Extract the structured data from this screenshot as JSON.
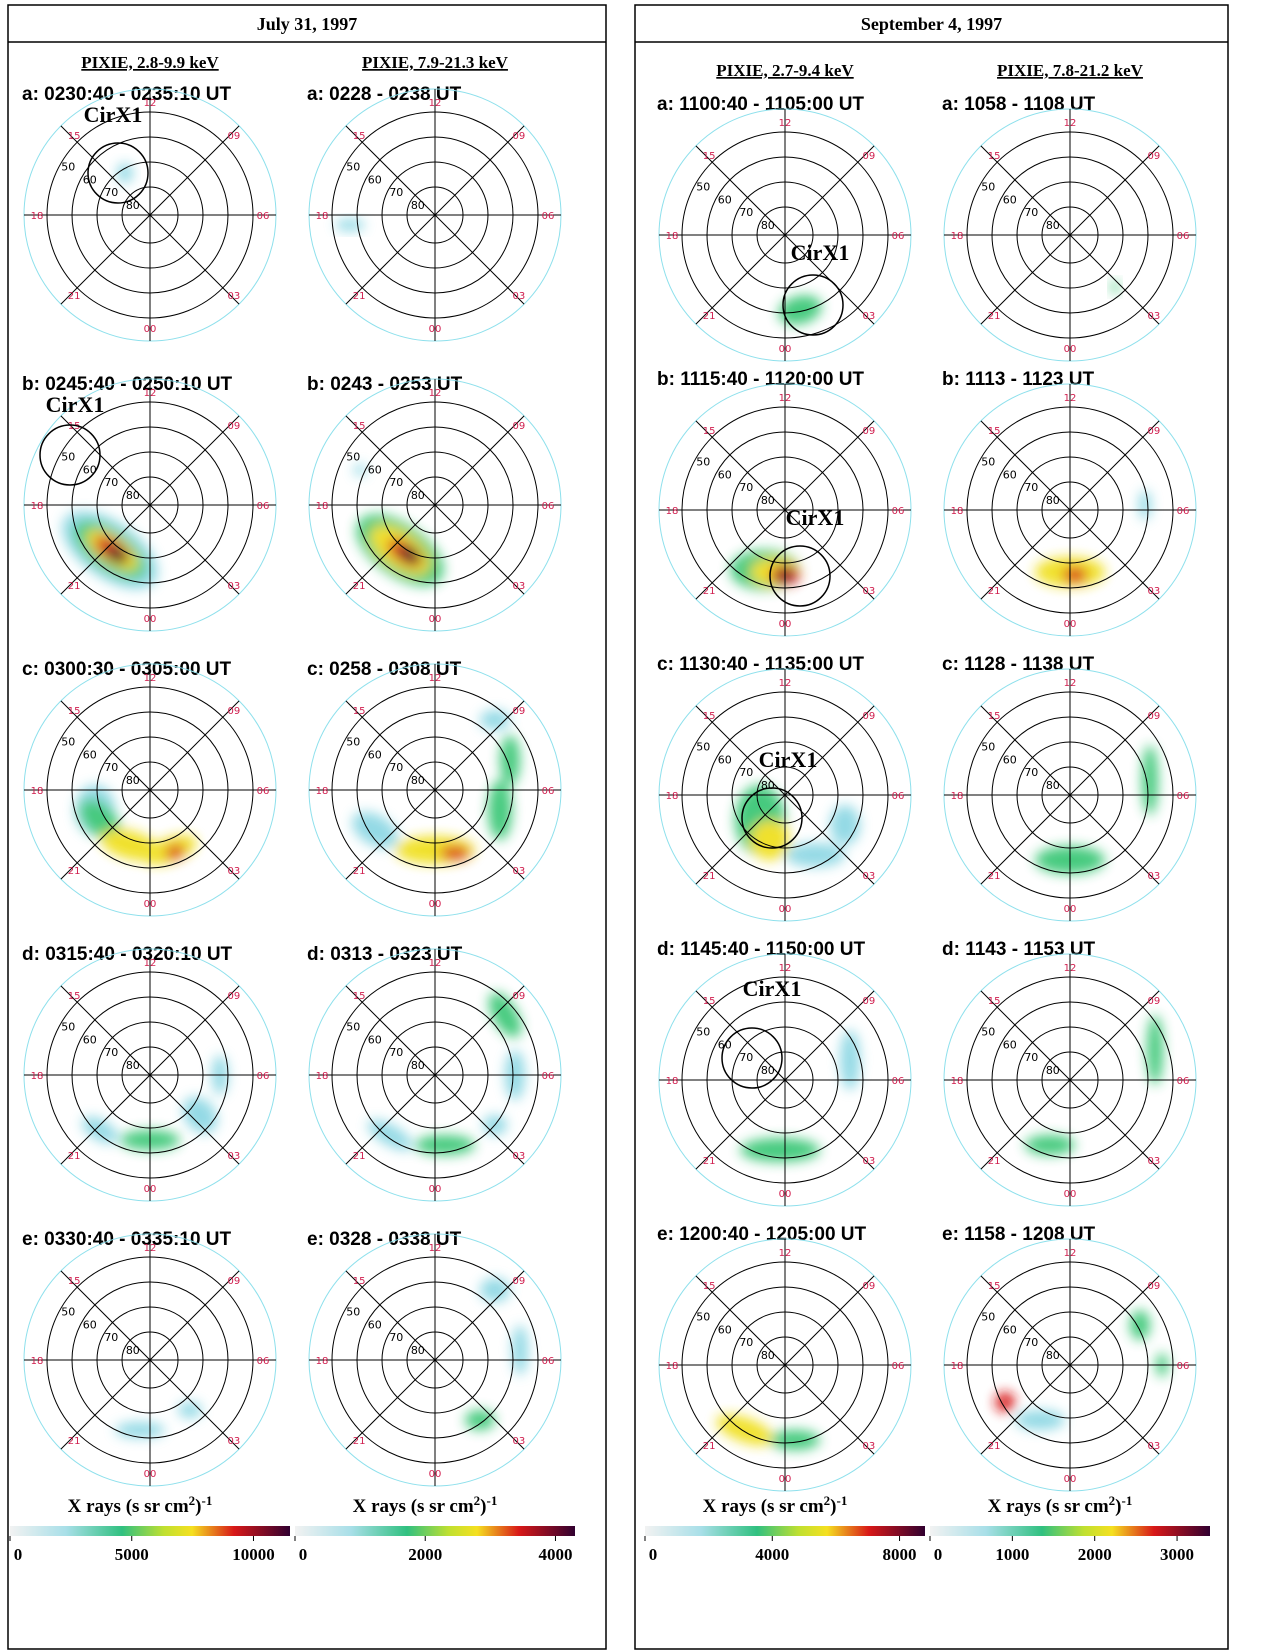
{
  "panels": [
    {
      "title": "July 31, 1997",
      "columns": [
        {
          "header": "PIXIE, 2.8-9.9 keV",
          "plots": [
            {
              "label": "a: 0230:40 - 0235:10 UT",
              "marker": "CirX1"
            },
            {
              "label": "b: 0245:40 - 0250:10 UT",
              "marker": "CirX1"
            },
            {
              "label": "c: 0300:30 - 0305:00 UT"
            },
            {
              "label": "d: 0315:40 - 0320:10 UT"
            },
            {
              "label": "e: 0330:40 - 0335:10 UT"
            }
          ],
          "colorbar": {
            "title": [
              "X rays (s sr cm",
              "2",
              ")",
              "-1"
            ],
            "lim": [
              0,
              11500
            ],
            "ticks": [
              0,
              5000,
              10000
            ]
          }
        },
        {
          "header": "PIXIE, 7.9-21.3 keV",
          "plots": [
            {
              "label": "a: 0228 - 0238 UT"
            },
            {
              "label": "b: 0243 - 0253 UT"
            },
            {
              "label": "c: 0258 - 0308 UT"
            },
            {
              "label": "d: 0313 - 0323 UT"
            },
            {
              "label": "e: 0328 - 0338 UT"
            }
          ],
          "colorbar": {
            "title": [
              "X rays (s sr cm",
              "2",
              ")",
              "-1"
            ],
            "lim": [
              0,
              4300
            ],
            "ticks": [
              0,
              2000,
              4000
            ]
          }
        }
      ]
    },
    {
      "title": "September 4, 1997",
      "columns": [
        {
          "header": "PIXIE, 2.7-9.4 keV",
          "plots": [
            {
              "label": "a: 1100:40 - 1105:00 UT",
              "marker": "CirX1"
            },
            {
              "label": "b: 1115:40 - 1120:00 UT",
              "marker": "CirX1"
            },
            {
              "label": "c: 1130:40 - 1135:00 UT",
              "marker": "CirX1"
            },
            {
              "label": "d: 1145:40 - 1150:00 UT",
              "marker": "CirX1"
            },
            {
              "label": "e: 1200:40 - 1205:00 UT"
            }
          ],
          "colorbar": {
            "title": [
              "X rays (s sr cm",
              "2",
              ")",
              "-1"
            ],
            "lim": [
              0,
              8800
            ],
            "ticks": [
              0,
              4000,
              8000
            ]
          }
        },
        {
          "header": "PIXIE, 7.8-21.2 keV",
          "plots": [
            {
              "label": "a: 1058 - 1108 UT"
            },
            {
              "label": "b: 1113 - 1123 UT"
            },
            {
              "label": "c: 1128 - 1138 UT"
            },
            {
              "label": "d: 1143 - 1153 UT"
            },
            {
              "label": "e: 1158 - 1208 UT"
            }
          ],
          "colorbar": {
            "title": [
              "X rays (s sr cm",
              "2",
              ")",
              "-1"
            ],
            "lim": [
              0,
              3400
            ],
            "ticks": [
              0,
              1000,
              2000,
              3000
            ]
          }
        }
      ]
    }
  ],
  "polar_grid": {
    "mlt": [
      "12",
      "15",
      "18",
      "21",
      "00",
      "03",
      "06",
      "09"
    ],
    "mlat": [
      "80",
      "70",
      "60",
      "50"
    ]
  }
}
